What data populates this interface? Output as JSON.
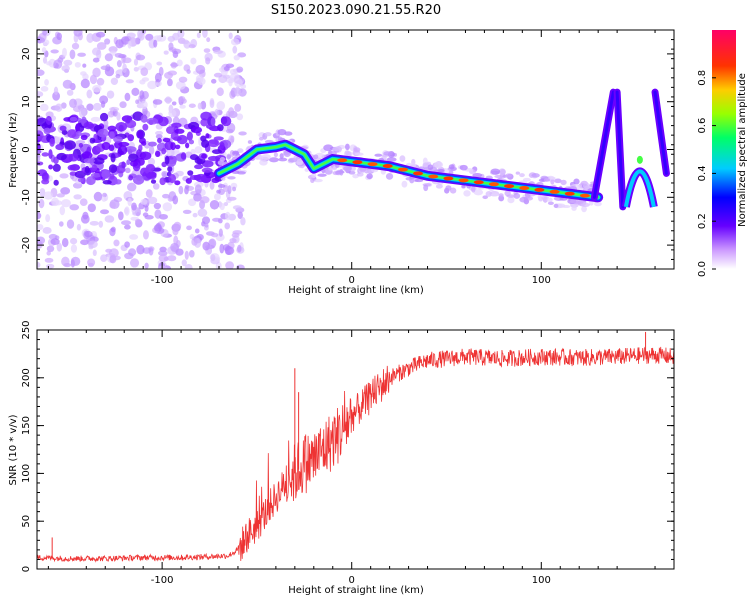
{
  "figure": {
    "title": "S150.2023.090.21.55.R20"
  },
  "chart_data": [
    {
      "type": "heatmap",
      "panel": "top",
      "xlabel": "Height of straight line (km)",
      "ylabel": "Frequency (Hz)",
      "xlim": [
        -166,
        170
      ],
      "ylim": [
        -25,
        25
      ],
      "xticks": [
        -100,
        0,
        100
      ],
      "yticks": [
        -20,
        -10,
        0,
        10,
        20
      ],
      "colorbar": {
        "label": "Normalized spectral amplitude",
        "range": [
          0,
          1
        ],
        "ticks": [
          "0.0",
          "0.2",
          "0.4",
          "0.6",
          "0.8"
        ],
        "colormap": [
          "#ffffff",
          "#cc99ff",
          "#6600ff",
          "#0000ff",
          "#00ccff",
          "#00ff66",
          "#99ff00",
          "#ffcc00",
          "#ff3300",
          "#ff0066"
        ]
      },
      "ridge": {
        "x": [
          -70,
          -60,
          -50,
          -40,
          -35,
          -30,
          -25,
          -20,
          -10,
          0,
          10,
          20,
          40,
          60,
          80,
          100,
          120,
          130
        ],
        "y": [
          -5,
          -3,
          0,
          0.5,
          1,
          0,
          -1,
          -4,
          -2,
          -2.5,
          -3,
          -3.5,
          -5.5,
          -6.5,
          -7.5,
          -8.5,
          -9.5,
          -10
        ]
      },
      "noisy_region": {
        "x_range": [
          -166,
          -65
        ],
        "center_freq": 0
      },
      "right_features": [
        {
          "type": "steep",
          "x": [
            128,
            138
          ],
          "y": [
            -10,
            12
          ]
        },
        {
          "type": "steep",
          "x": [
            140,
            143
          ],
          "y": [
            12,
            -12
          ]
        },
        {
          "type": "arc",
          "x_center": 152,
          "y_peak": -3
        },
        {
          "type": "steep",
          "x": [
            160,
            166
          ],
          "y": [
            12,
            -5
          ]
        }
      ]
    },
    {
      "type": "line",
      "panel": "bottom",
      "xlabel": "Height of straight line (km)",
      "ylabel": "SNR (10 * v/v)",
      "xlim": [
        -166,
        170
      ],
      "ylim": [
        0,
        250
      ],
      "xticks": [
        -100,
        0,
        100
      ],
      "yticks": [
        0,
        50,
        100,
        150,
        200,
        250
      ],
      "color": "#ee3333",
      "series": [
        {
          "x": [
            -166,
            -150,
            -130,
            -110,
            -90,
            -75,
            -65,
            -60,
            -55,
            -50,
            -45,
            -40,
            -35,
            -30,
            -25,
            -20,
            -15,
            -10,
            -5,
            0,
            5,
            10,
            15,
            20,
            30,
            40,
            60,
            80,
            100,
            120,
            140,
            160,
            170
          ],
          "values": [
            12,
            11,
            11,
            12,
            12,
            13,
            14,
            20,
            35,
            45,
            60,
            75,
            90,
            100,
            110,
            115,
            125,
            135,
            145,
            160,
            170,
            180,
            190,
            200,
            210,
            218,
            222,
            220,
            222,
            221,
            222,
            224,
            222
          ]
        }
      ],
      "spikes": [
        {
          "x": -30,
          "y": 210
        },
        {
          "x": -28,
          "y": 185
        },
        {
          "x": -158,
          "y": 33
        },
        {
          "x": 155,
          "y": 248
        }
      ]
    }
  ]
}
